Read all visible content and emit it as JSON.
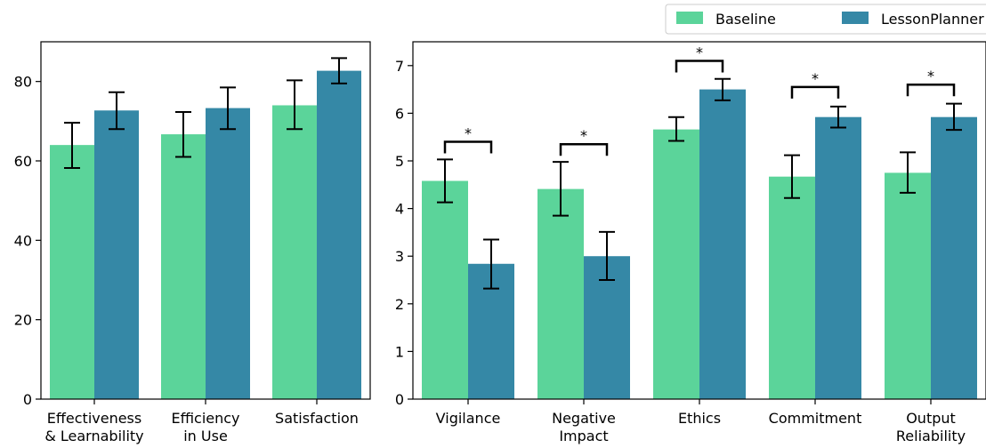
{
  "legend": {
    "entries": [
      {
        "label": "Baseline",
        "color": "#5bd49a"
      },
      {
        "label": "LessonPlanner",
        "color": "#3588a6"
      }
    ]
  },
  "chart_data": [
    {
      "type": "bar",
      "categories": [
        "Effectiveness\n& Learnability",
        "Efficiency\nin Use",
        "Satisfaction"
      ],
      "series": [
        {
          "name": "Baseline",
          "color": "#5bd49a",
          "values": [
            64,
            66.7,
            74
          ],
          "err_low": [
            58.2,
            61,
            68
          ],
          "err_high": [
            69.6,
            72.3,
            80.3
          ]
        },
        {
          "name": "LessonPlanner",
          "color": "#3588a6",
          "values": [
            72.7,
            73.3,
            82.7
          ],
          "err_low": [
            68,
            68,
            79.5
          ],
          "err_high": [
            77.3,
            78.5,
            85.9
          ]
        }
      ],
      "ylim": [
        0,
        90
      ],
      "yticks": [
        0,
        20,
        40,
        60,
        80
      ],
      "grid": false
    },
    {
      "type": "bar",
      "categories": [
        "Vigilance",
        "Negative\nImpact",
        "Ethics",
        "Commitment",
        "Output\nReliability"
      ],
      "series": [
        {
          "name": "Baseline",
          "color": "#5bd49a",
          "values": [
            4.58,
            4.41,
            5.66,
            4.67,
            4.75
          ],
          "err_low": [
            4.13,
            3.85,
            5.42,
            4.22,
            4.33
          ],
          "err_high": [
            5.03,
            4.98,
            5.92,
            5.12,
            5.18
          ]
        },
        {
          "name": "LessonPlanner",
          "color": "#3588a6",
          "values": [
            2.84,
            3.0,
            6.5,
            5.92,
            5.92
          ],
          "err_low": [
            2.32,
            2.5,
            6.27,
            5.7,
            5.65
          ],
          "err_high": [
            3.35,
            3.51,
            6.72,
            6.14,
            6.2
          ]
        }
      ],
      "ylim": [
        0,
        7.5
      ],
      "yticks": [
        0,
        1,
        2,
        3,
        4,
        5,
        6,
        7
      ],
      "significance": [
        {
          "category": 0,
          "label": "*",
          "level": 5.4
        },
        {
          "category": 1,
          "label": "*",
          "level": 5.35
        },
        {
          "category": 2,
          "label": "*",
          "level": 7.1
        },
        {
          "category": 3,
          "label": "*",
          "level": 6.55
        },
        {
          "category": 4,
          "label": "*",
          "level": 6.6
        }
      ],
      "grid": false
    }
  ]
}
